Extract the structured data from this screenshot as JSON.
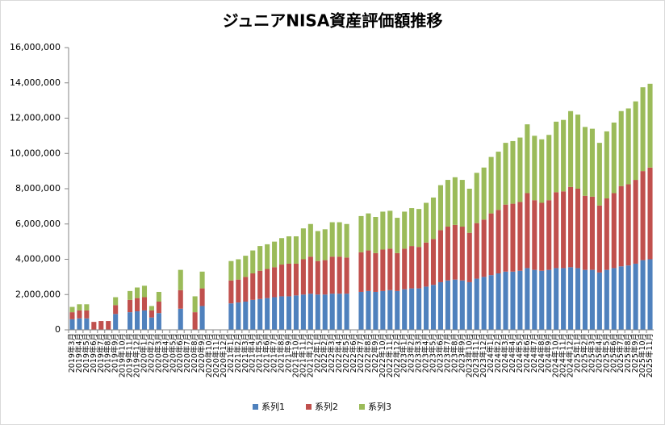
{
  "chart_data": {
    "type": "stacked_bar",
    "title": "ジュニアNISA資産評価額推移",
    "categories": [
      "2019年3月",
      "2019年4月",
      "2019年5月",
      "2019年6月",
      "2019年7月",
      "2019年8月",
      "2019年9月",
      "2019年10月",
      "2019年11月",
      "2019年12月",
      "2020年1月",
      "2020年2月",
      "2020年3月",
      "2020年4月",
      "2020年5月",
      "2020年6月",
      "2020年7月",
      "2020年8月",
      "2020年9月",
      "2020年10月",
      "2020年11月",
      "2020年12月",
      "2021年1月",
      "2021年2月",
      "2021年3月",
      "2021年4月",
      "2021年5月",
      "2021年6月",
      "2021年7月",
      "2021年8月",
      "2021年9月",
      "2021年10月",
      "2021年11月",
      "2021年12月",
      "2022年1月",
      "2022年2月",
      "2022年3月",
      "2022年4月",
      "2022年5月",
      "2022年6月",
      "2022年7月",
      "2022年8月",
      "2022年9月",
      "2022年10月",
      "2022年11月",
      "2022年12月",
      "2023年1月",
      "2023年2月",
      "2023年3月",
      "2023年4月",
      "2023年5月",
      "2023年6月",
      "2023年7月",
      "2023年8月",
      "2023年9月",
      "2023年10月",
      "2023年11月",
      "2023年12月",
      "2024年1月",
      "2024年2月",
      "2024年3月",
      "2024年4月",
      "2024年5月",
      "2024年6月",
      "2024年7月",
      "2024年8月",
      "2024年9月",
      "2024年10月",
      "2024年11月",
      "2024年12月",
      "2025年1月",
      "2025年2月",
      "2025年3月",
      "2025年4月",
      "2025年5月",
      "2025年6月",
      "2025年7月",
      "2025年8月",
      "2025年9月",
      "2025年10月",
      "2025年11月"
    ],
    "series": [
      {
        "name": "系列1",
        "color": "#4f81bd",
        "values": [
          600000,
          650000,
          650000,
          null,
          null,
          null,
          900000,
          null,
          1000000,
          1050000,
          1100000,
          700000,
          950000,
          null,
          null,
          1200000,
          null,
          null,
          1350000,
          null,
          null,
          null,
          1500000,
          1550000,
          1600000,
          1700000,
          1750000,
          1800000,
          1850000,
          1900000,
          1900000,
          1950000,
          2000000,
          2050000,
          2000000,
          2000000,
          2050000,
          2050000,
          2050000,
          null,
          2150000,
          2200000,
          2150000,
          2200000,
          2250000,
          2200000,
          2300000,
          2350000,
          2350000,
          2450000,
          2550000,
          2700000,
          2800000,
          2850000,
          2800000,
          2700000,
          2900000,
          3000000,
          3100000,
          3200000,
          3300000,
          3300000,
          3350000,
          3500000,
          3400000,
          3350000,
          3400000,
          3500000,
          3500000,
          3550000,
          3500000,
          3400000,
          3400000,
          3250000,
          3400000,
          3500000,
          3600000,
          3650000,
          3750000,
          3950000,
          4000000
        ]
      },
      {
        "name": "系列2",
        "color": "#c0504d",
        "values": [
          400000,
          450000,
          450000,
          450000,
          500000,
          500000,
          500000,
          null,
          700000,
          750000,
          750000,
          400000,
          650000,
          null,
          null,
          1050000,
          null,
          1000000,
          1000000,
          null,
          null,
          null,
          1300000,
          1300000,
          1400000,
          1500000,
          1600000,
          1650000,
          1700000,
          1800000,
          1850000,
          1800000,
          2000000,
          2100000,
          1900000,
          1950000,
          2100000,
          2100000,
          2050000,
          null,
          2250000,
          2300000,
          2200000,
          2350000,
          2350000,
          2150000,
          2300000,
          2400000,
          2350000,
          2500000,
          2600000,
          2950000,
          3050000,
          3100000,
          3050000,
          2800000,
          3150000,
          3250000,
          3500000,
          3600000,
          3800000,
          3850000,
          3900000,
          4250000,
          3950000,
          3850000,
          3950000,
          4300000,
          4350000,
          4550000,
          4500000,
          4200000,
          4150000,
          3800000,
          4050000,
          4250000,
          4550000,
          4600000,
          4750000,
          5050000,
          5200000
        ]
      },
      {
        "name": "系列3",
        "color": "#9bbb59",
        "values": [
          300000,
          350000,
          350000,
          null,
          null,
          null,
          450000,
          null,
          500000,
          600000,
          650000,
          250000,
          550000,
          null,
          null,
          1150000,
          null,
          900000,
          950000,
          null,
          null,
          null,
          1100000,
          1150000,
          1200000,
          1300000,
          1400000,
          1400000,
          1450000,
          1500000,
          1550000,
          1550000,
          1750000,
          1850000,
          1700000,
          1750000,
          1950000,
          1950000,
          1900000,
          null,
          2050000,
          2100000,
          2050000,
          2150000,
          2150000,
          2000000,
          2100000,
          2150000,
          2150000,
          2250000,
          2350000,
          2550000,
          2650000,
          2700000,
          2650000,
          2500000,
          2850000,
          2950000,
          3200000,
          3300000,
          3500000,
          3550000,
          3650000,
          3900000,
          3650000,
          3600000,
          3700000,
          4000000,
          4050000,
          4300000,
          4200000,
          3900000,
          3850000,
          3550000,
          3800000,
          4000000,
          4250000,
          4300000,
          4450000,
          4750000,
          4750000
        ]
      }
    ],
    "ylim": [
      0,
      16000000
    ],
    "yticks": [
      0,
      {
        "value": 2000000,
        "label": "2,000,000"
      },
      {
        "value": 4000000,
        "label": "4,000,000"
      },
      {
        "value": 6000000,
        "label": "6,000,000"
      },
      {
        "value": 8000000,
        "label": "8,000,000"
      },
      {
        "value": 10000000,
        "label": "10,000,000"
      },
      {
        "value": 12000000,
        "label": "12,000,000"
      },
      {
        "value": 14000000,
        "label": "14,000,000"
      },
      {
        "value": 16000000,
        "label": "16,000,000"
      }
    ],
    "grid": false,
    "legend": "bottom"
  }
}
